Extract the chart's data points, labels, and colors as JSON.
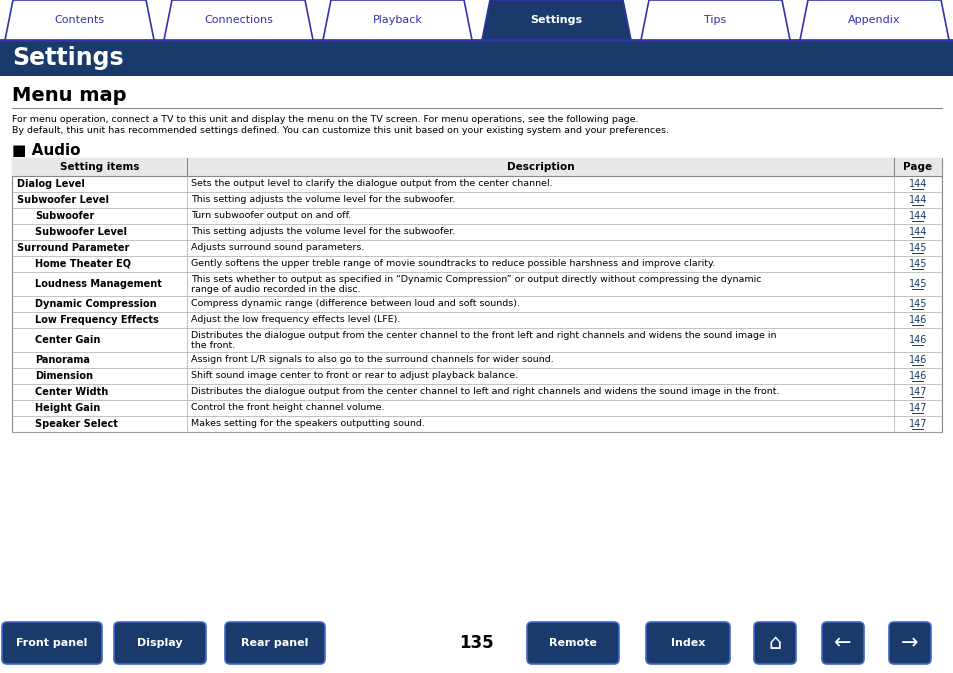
{
  "tabs": [
    "Contents",
    "Connections",
    "Playback",
    "Settings",
    "Tips",
    "Appendix"
  ],
  "active_tab": "Settings",
  "tab_bg_active": "#1a3a6b",
  "tab_bg_inactive": "#ffffff",
  "tab_border": "#3333aa",
  "header_bg": "#1a3a6b",
  "header_text": "Settings",
  "section_title": "Menu map",
  "intro_line1": "For menu operation, connect a TV to this unit and display the menu on the TV screen. For menu operations, see the following page.",
  "intro_line2": "By default, this unit has recommended settings defined. You can customize this unit based on your existing system and your preferences.",
  "audio_section": "■ Audio",
  "table_header": [
    "Setting items",
    "Description",
    "Page"
  ],
  "table_header_bg": "#e8e8e8",
  "rows": [
    {
      "indent": 0,
      "bold": true,
      "setting": "Dialog Level",
      "description": "Sets the output level to clarify the dialogue output from the center channel.",
      "page": "144"
    },
    {
      "indent": 0,
      "bold": true,
      "setting": "Subwoofer Level",
      "description": "This setting adjusts the volume level for the subwoofer.",
      "page": "144"
    },
    {
      "indent": 1,
      "bold": true,
      "setting": "Subwoofer",
      "description": "Turn subwoofer output on and off.",
      "page": "144"
    },
    {
      "indent": 1,
      "bold": true,
      "setting": "Subwoofer Level",
      "description": "This setting adjusts the volume level for the subwoofer.",
      "page": "144"
    },
    {
      "indent": 0,
      "bold": true,
      "setting": "Surround Parameter",
      "description": "Adjusts surround sound parameters.",
      "page": "145"
    },
    {
      "indent": 1,
      "bold": true,
      "setting": "Home Theater EQ",
      "description": "Gently softens the upper treble range of movie soundtracks to reduce possible harshness and improve clarity.",
      "page": "145"
    },
    {
      "indent": 1,
      "bold": true,
      "setting": "Loudness Management",
      "description": "This sets whether to output as specified in “Dynamic Compression” or output directly without compressing the dynamic\nrange of audio recorded in the disc.",
      "page": "145"
    },
    {
      "indent": 1,
      "bold": true,
      "setting": "Dynamic Compression",
      "description": "Compress dynamic range (difference between loud and soft sounds).",
      "page": "145"
    },
    {
      "indent": 1,
      "bold": true,
      "setting": "Low Frequency Effects",
      "description": "Adjust the low frequency effects level (LFE).",
      "page": "146"
    },
    {
      "indent": 1,
      "bold": true,
      "setting": "Center Gain",
      "description": "Distributes the dialogue output from the center channel to the front left and right channels and widens the sound image in\nthe front.",
      "page": "146"
    },
    {
      "indent": 1,
      "bold": true,
      "setting": "Panorama",
      "description": "Assign front L/R signals to also go to the surround channels for wider sound.",
      "page": "146"
    },
    {
      "indent": 1,
      "bold": true,
      "setting": "Dimension",
      "description": "Shift sound image center to front or rear to adjust playback balance.",
      "page": "146"
    },
    {
      "indent": 1,
      "bold": true,
      "setting": "Center Width",
      "description": "Distributes the dialogue output from the center channel to left and right channels and widens the sound image in the front.",
      "page": "147"
    },
    {
      "indent": 1,
      "bold": true,
      "setting": "Height Gain",
      "description": "Control the front height channel volume.",
      "page": "147"
    },
    {
      "indent": 1,
      "bold": true,
      "setting": "Speaker Select",
      "description": "Makes setting for the speakers outputting sound.",
      "page": "147"
    }
  ],
  "footer_buttons": [
    "Front panel",
    "Display",
    "Rear panel",
    "Remote",
    "Index"
  ],
  "page_number": "135",
  "footer_bg": "#1a3a6b",
  "bg_color": "#ffffff",
  "link_color": "#1a3a6b",
  "tab_active_text": "#ffffff",
  "tab_inactive_text": "#3333aa"
}
